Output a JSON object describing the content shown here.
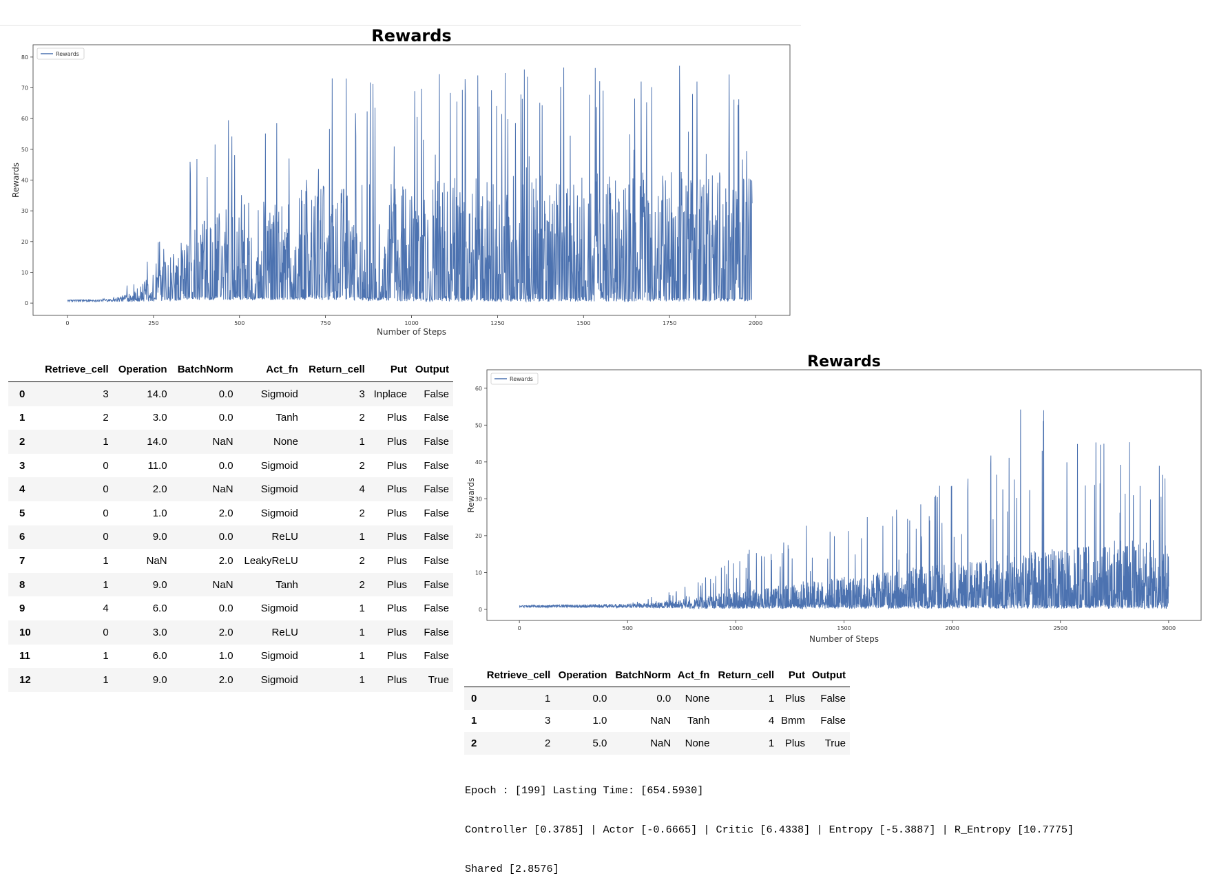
{
  "chart_data": [
    {
      "type": "line",
      "title": "Rewards",
      "xlabel": "Number of Steps",
      "ylabel": "Rewards",
      "xlim": [
        -100,
        2100
      ],
      "ylim": [
        -4,
        84
      ],
      "xticks": [
        0,
        250,
        500,
        750,
        1000,
        1250,
        1500,
        1750,
        2000
      ],
      "yticks": [
        0,
        10,
        20,
        30,
        40,
        50,
        60,
        70,
        80
      ],
      "legend": "upper-left",
      "grid": false,
      "color": "#4c72b0",
      "series": [
        {
          "name": "Rewards",
          "n_points": 2000,
          "shape_keypoints": {
            "x": [
              0,
              100,
              150,
              200,
              250,
              300,
              350,
              400,
              500,
              600,
              750,
              1000,
              1250,
              1500,
              1750,
              1990
            ],
            "y_low": [
              0.5,
              0.5,
              0.5,
              0.5,
              0.5,
              0.5,
              1,
              1,
              1,
              1,
              1,
              0.5,
              0.5,
              0.5,
              0.5,
              0.5
            ],
            "y_typical": [
              0.8,
              0.8,
              1.5,
              3,
              6,
              10,
              14,
              17,
              20,
              22,
              24,
              25,
              26,
              27,
              27,
              27
            ],
            "y_peak": [
              1,
              1,
              6,
              8,
              20,
              28,
              52,
              61,
              67,
              70,
              73,
              76,
              76,
              80,
              78,
              80
            ]
          }
        }
      ]
    },
    {
      "type": "line",
      "title": "Rewards",
      "xlabel": "Number of Steps",
      "ylabel": "Rewards",
      "xlim": [
        -150,
        3150
      ],
      "ylim": [
        -3,
        65
      ],
      "xticks": [
        0,
        500,
        1000,
        1500,
        2000,
        2500,
        3000
      ],
      "yticks": [
        0,
        10,
        20,
        30,
        40,
        50,
        60
      ],
      "legend": "upper-left",
      "grid": false,
      "color": "#4c72b0",
      "series": [
        {
          "name": "Rewards",
          "n_points": 3000,
          "shape_keypoints": {
            "x": [
              0,
              500,
              700,
              900,
              1000,
              1200,
              1400,
              1600,
              1800,
              2000,
              2200,
              2400,
              2600,
              2800,
              3000
            ],
            "y_low": [
              0.5,
              0.5,
              0.3,
              0.2,
              0.2,
              0.2,
              0.2,
              0.2,
              0.2,
              0.2,
              0.2,
              0.2,
              0.2,
              0.2,
              0.2
            ],
            "y_typical": [
              0.7,
              0.7,
              1.5,
              2.5,
              3,
              4,
              5,
              6,
              7,
              8,
              9,
              10,
              11,
              12,
              12
            ],
            "y_peak": [
              1,
              1.5,
              5,
              10,
              17,
              17,
              28,
              25,
              30,
              35,
              44,
              62,
              45,
              50,
              50
            ]
          }
        }
      ]
    }
  ],
  "table_a": {
    "columns": [
      "",
      "Retrieve_cell",
      "Operation",
      "BatchNorm",
      "Act_fn",
      "Return_cell",
      "Put",
      "Output"
    ],
    "rows": [
      [
        "0",
        "3",
        "14.0",
        "0.0",
        "Sigmoid",
        "3",
        "Inplace",
        "False"
      ],
      [
        "1",
        "2",
        "3.0",
        "0.0",
        "Tanh",
        "2",
        "Plus",
        "False"
      ],
      [
        "2",
        "1",
        "14.0",
        "NaN",
        "None",
        "1",
        "Plus",
        "False"
      ],
      [
        "3",
        "0",
        "11.0",
        "0.0",
        "Sigmoid",
        "2",
        "Plus",
        "False"
      ],
      [
        "4",
        "0",
        "2.0",
        "NaN",
        "Sigmoid",
        "4",
        "Plus",
        "False"
      ],
      [
        "5",
        "0",
        "1.0",
        "2.0",
        "Sigmoid",
        "2",
        "Plus",
        "False"
      ],
      [
        "6",
        "0",
        "9.0",
        "0.0",
        "ReLU",
        "1",
        "Plus",
        "False"
      ],
      [
        "7",
        "1",
        "NaN",
        "2.0",
        "LeakyReLU",
        "2",
        "Plus",
        "False"
      ],
      [
        "8",
        "1",
        "9.0",
        "NaN",
        "Tanh",
        "2",
        "Plus",
        "False"
      ],
      [
        "9",
        "4",
        "6.0",
        "0.0",
        "Sigmoid",
        "1",
        "Plus",
        "False"
      ],
      [
        "10",
        "0",
        "3.0",
        "2.0",
        "ReLU",
        "1",
        "Plus",
        "False"
      ],
      [
        "11",
        "1",
        "6.0",
        "1.0",
        "Sigmoid",
        "1",
        "Plus",
        "False"
      ],
      [
        "12",
        "1",
        "9.0",
        "2.0",
        "Sigmoid",
        "1",
        "Plus",
        "True"
      ]
    ]
  },
  "table_b": {
    "columns": [
      "",
      "Retrieve_cell",
      "Operation",
      "BatchNorm",
      "Act_fn",
      "Return_cell",
      "Put",
      "Output"
    ],
    "rows": [
      [
        "0",
        "1",
        "0.0",
        "0.0",
        "None",
        "1",
        "Plus",
        "False"
      ],
      [
        "1",
        "3",
        "1.0",
        "NaN",
        "Tanh",
        "4",
        "Bmm",
        "False"
      ],
      [
        "2",
        "2",
        "5.0",
        "NaN",
        "None",
        "1",
        "Plus",
        "True"
      ]
    ]
  },
  "log": {
    "line1": "Epoch : [199] Lasting Time: [654.5930]",
    "line2": "Controller [0.3785] | Actor [-0.6665] | Critic [6.4338] | Entropy [-5.3887] | R_Entropy [10.7775]",
    "line3": "Shared [2.8576]"
  }
}
